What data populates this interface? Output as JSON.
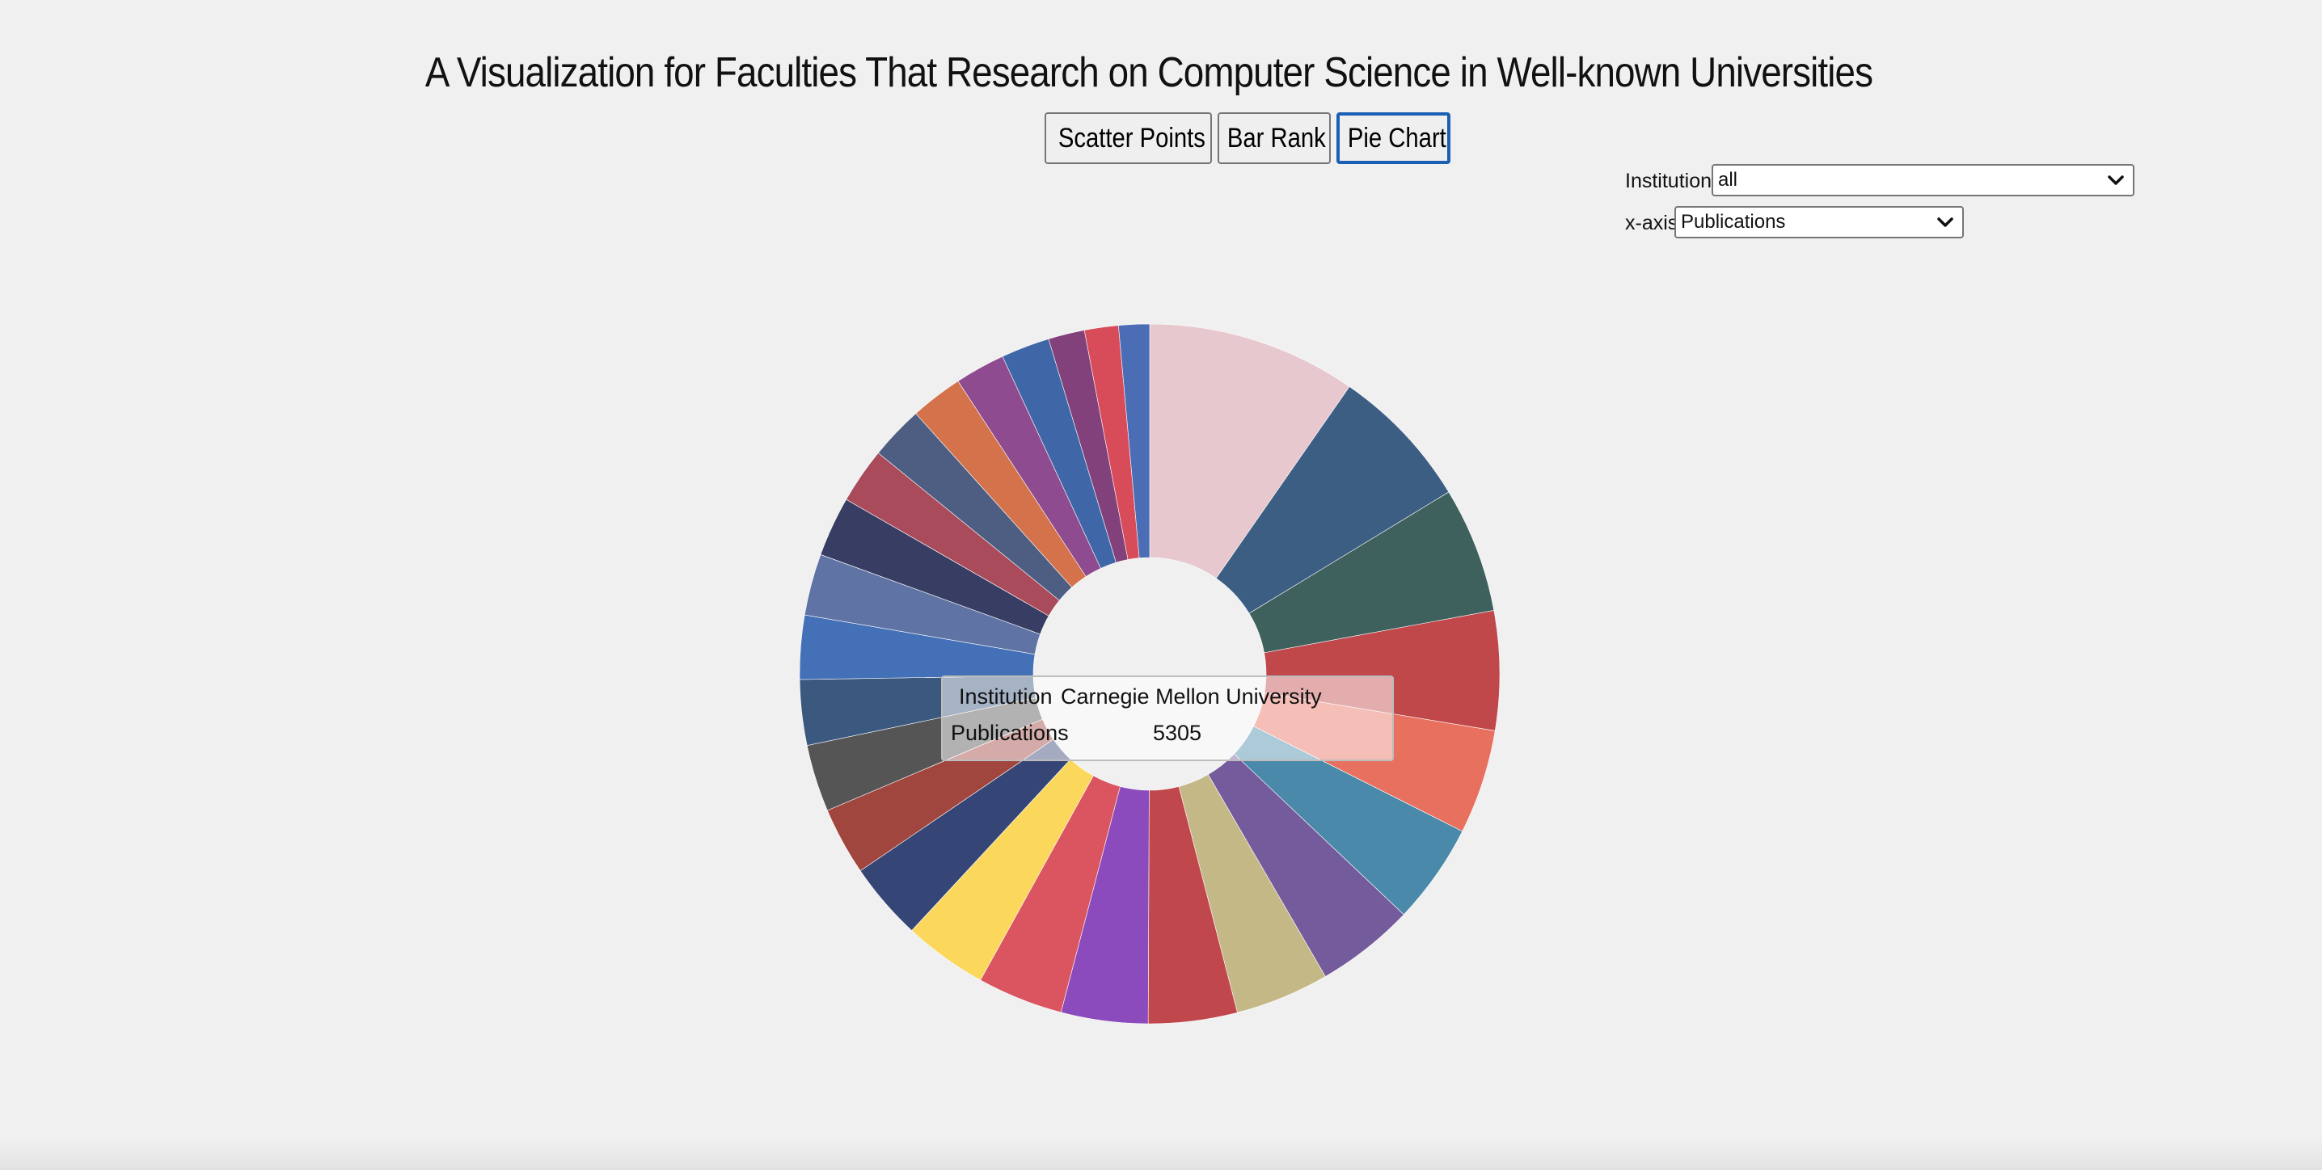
{
  "header": {
    "title": "A Visualization for Faculties That Research on Computer Science in Well-known Universities"
  },
  "tabs": [
    {
      "label": "Scatter Points",
      "active": false
    },
    {
      "label": "Bar Rank",
      "active": false
    },
    {
      "label": "Pie Chart",
      "active": true
    }
  ],
  "controls": {
    "institution_label": "Institution:",
    "institution_value": "all",
    "xaxis_label": "x-axis:",
    "xaxis_value": "Publications",
    "chevron_icon": "chevron-down-icon"
  },
  "tooltip": {
    "institution_key": "Institution",
    "institution_value": "Carnegie Mellon University",
    "metric_key": "Publications",
    "metric_value": "5305"
  },
  "chart_data": {
    "type": "pie",
    "variant": "donut",
    "metric": "Publications",
    "highlighted_slice": {
      "institution": "Carnegie Mellon University",
      "value": 5305
    },
    "slices": [
      {
        "value": 5305,
        "color": "#e8c8cf"
      },
      {
        "value": 3640,
        "color": "#3d5e83"
      },
      {
        "value": 3180,
        "color": "#3e615e"
      },
      {
        "value": 3020,
        "color": "#c0474a"
      },
      {
        "value": 2650,
        "color": "#e8705f"
      },
      {
        "value": 2550,
        "color": "#4a89aa"
      },
      {
        "value": 2500,
        "color": "#735b9c"
      },
      {
        "value": 2380,
        "color": "#c4b887"
      },
      {
        "value": 2250,
        "color": "#c0484c"
      },
      {
        "value": 2200,
        "color": "#8b4bbc"
      },
      {
        "value": 2170,
        "color": "#db5561"
      },
      {
        "value": 2120,
        "color": "#fbd75c"
      },
      {
        "value": 1970,
        "color": "#354575"
      },
      {
        "value": 1720,
        "color": "#a1463f"
      },
      {
        "value": 1700,
        "color": "#555555"
      },
      {
        "value": 1660,
        "color": "#3b587f"
      },
      {
        "value": 1620,
        "color": "#4370b7"
      },
      {
        "value": 1560,
        "color": "#5f73a5"
      },
      {
        "value": 1520,
        "color": "#383e63"
      },
      {
        "value": 1410,
        "color": "#a94b5b"
      },
      {
        "value": 1360,
        "color": "#4d5e82"
      },
      {
        "value": 1330,
        "color": "#d4724b"
      },
      {
        "value": 1270,
        "color": "#8f4b8f"
      },
      {
        "value": 1230,
        "color": "#3f67a8"
      },
      {
        "value": 920,
        "color": "#83417c"
      },
      {
        "value": 860,
        "color": "#d84c5a"
      },
      {
        "value": 780,
        "color": "#4a6db6"
      }
    ]
  }
}
